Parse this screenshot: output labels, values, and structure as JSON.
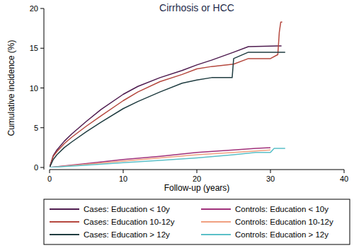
{
  "chart_data": {
    "type": "line",
    "title": "Cirrhosis or HCC",
    "x_label": "Follow-up (years)",
    "y_label": "Cumulative incidence (%)",
    "xlim": [
      0,
      40
    ],
    "ylim": [
      0,
      20
    ],
    "xticks": [
      0,
      10,
      20,
      30,
      40
    ],
    "yticks": [
      0,
      5,
      10,
      15,
      20
    ],
    "grid": false,
    "legend": "bottom",
    "series": [
      {
        "name": "Cases: Education < 10y",
        "color": "#4e1b4f",
        "x": [
          0,
          0.5,
          1,
          2,
          3,
          5,
          7,
          10,
          12,
          15,
          18,
          20,
          22,
          25,
          27,
          31,
          31.5
        ],
        "values": [
          0,
          1.5,
          2.2,
          3.3,
          4.2,
          5.8,
          7.3,
          9.2,
          10.2,
          11.3,
          12.2,
          12.9,
          13.5,
          14.5,
          15.2,
          15.3,
          15.3
        ]
      },
      {
        "name": "Cases: Education 10-12y",
        "color": "#b5483e",
        "x": [
          0,
          0.5,
          1,
          2,
          3,
          5,
          7,
          10,
          12,
          15,
          18,
          20,
          22,
          25,
          27,
          30,
          31,
          31.2,
          31.4,
          31.6
        ],
        "values": [
          0,
          1.4,
          2.0,
          3.0,
          3.8,
          5.2,
          6.5,
          8.4,
          9.5,
          10.8,
          11.7,
          12.4,
          12.7,
          13.0,
          13.7,
          13.7,
          14.2,
          17.0,
          18.3,
          18.3
        ]
      },
      {
        "name": "Cases: Education > 12y",
        "color": "#1f3c40",
        "x": [
          0,
          0.5,
          1,
          2,
          3,
          5,
          7,
          10,
          12,
          15,
          18,
          20,
          22,
          24.8,
          25,
          27,
          32
        ],
        "values": [
          0,
          1.0,
          1.6,
          2.5,
          3.2,
          4.5,
          5.7,
          7.4,
          8.3,
          9.5,
          10.6,
          11.0,
          11.3,
          11.3,
          13.7,
          14.5,
          14.5
        ]
      },
      {
        "name": "Controls: Education < 10y",
        "color": "#a0307a",
        "x": [
          0,
          2,
          5,
          10,
          15,
          20,
          25,
          28,
          30
        ],
        "values": [
          0,
          0.2,
          0.5,
          1.0,
          1.4,
          1.9,
          2.2,
          2.4,
          2.5
        ]
      },
      {
        "name": "Controls: Education 10-12y",
        "color": "#f0a080",
        "x": [
          0,
          5,
          10,
          15,
          20,
          25,
          30
        ],
        "values": [
          0,
          0.4,
          0.8,
          1.2,
          1.6,
          1.9,
          2.2
        ]
      },
      {
        "name": "Controls: Education > 12y",
        "color": "#5bc0c8",
        "x": [
          0,
          5,
          10,
          15,
          20,
          25,
          28,
          30,
          30.5,
          32
        ],
        "values": [
          0,
          0.3,
          0.6,
          0.9,
          1.2,
          1.6,
          1.9,
          1.9,
          2.4,
          2.4
        ]
      }
    ]
  }
}
